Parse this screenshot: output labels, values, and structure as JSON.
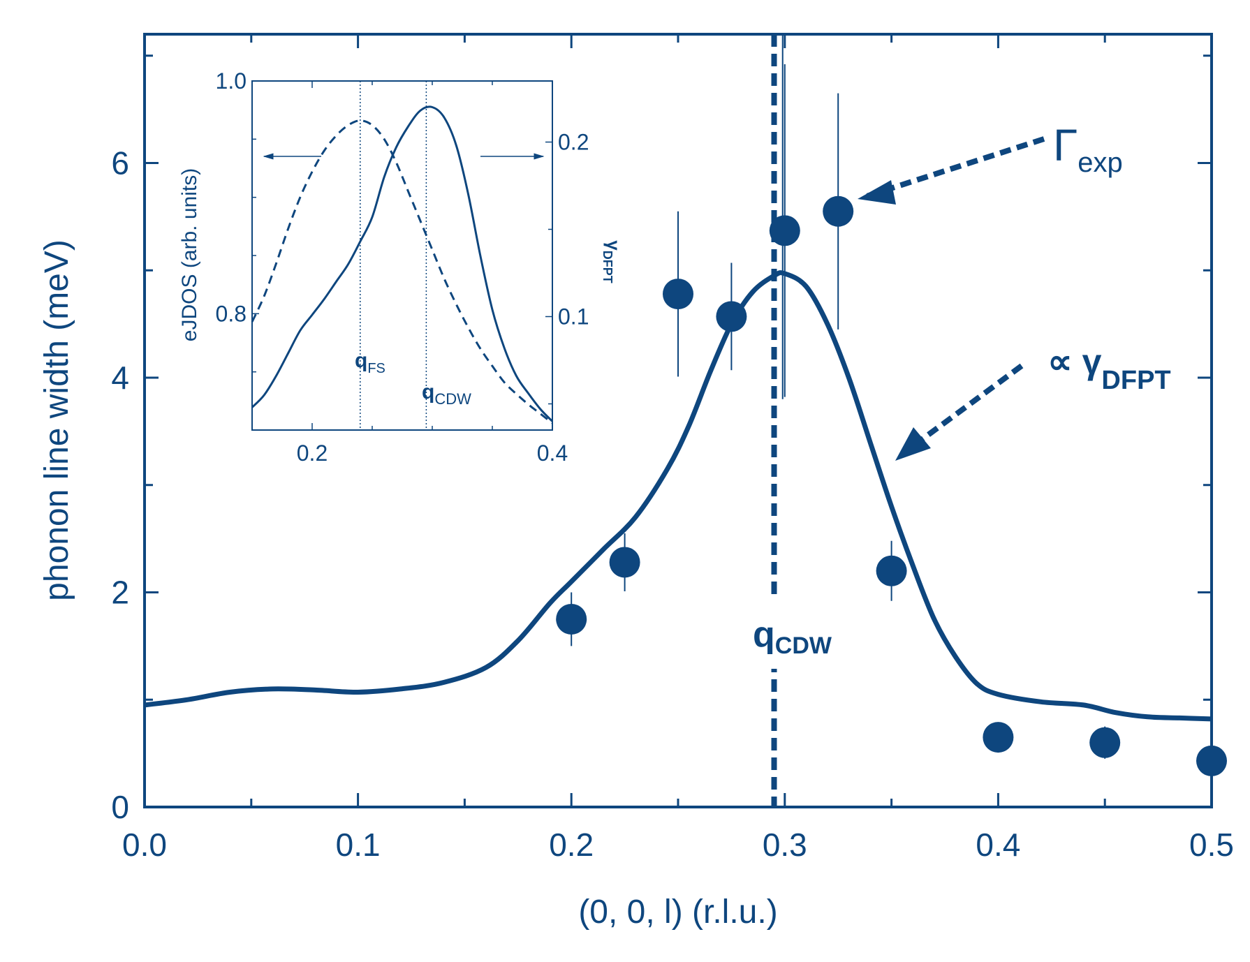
{
  "chart_data": [
    {
      "panel": "main",
      "type": "scatter",
      "xlabel": "(0, 0, l) (r.l.u.)",
      "ylabel": "phonon line width (meV)",
      "xlim": [
        0.0,
        0.5
      ],
      "ylim": [
        0,
        7.2
      ],
      "xticks": [
        "0.0",
        "0.1",
        "0.2",
        "0.3",
        "0.4",
        "0.5"
      ],
      "yticks": [
        "0",
        "2",
        "4",
        "6"
      ],
      "color": "#0e467e",
      "series": [
        {
          "name": "Γexp",
          "style": "markers-with-errorbars",
          "points": [
            {
              "x": 0.2,
              "y": 1.75,
              "err": 0.25
            },
            {
              "x": 0.225,
              "y": 2.28,
              "err": 0.27
            },
            {
              "x": 0.25,
              "y": 4.78,
              "err": 0.77
            },
            {
              "x": 0.275,
              "y": 4.57,
              "err": 0.5
            },
            {
              "x": 0.3,
              "y": 5.37,
              "err": 1.55
            },
            {
              "x": 0.325,
              "y": 5.55,
              "err": 1.1
            },
            {
              "x": 0.35,
              "y": 2.2,
              "err": 0.28
            },
            {
              "x": 0.4,
              "y": 0.65,
              "err": 0.12
            },
            {
              "x": 0.45,
              "y": 0.6,
              "err": 0.15
            },
            {
              "x": 0.5,
              "y": 0.43,
              "err": 0.08
            }
          ]
        },
        {
          "name": "∝ γDFPT",
          "style": "solid-line",
          "points": [
            [
              0.0,
              0.95
            ],
            [
              0.02,
              1.0
            ],
            [
              0.04,
              1.07
            ],
            [
              0.06,
              1.1
            ],
            [
              0.08,
              1.09
            ],
            [
              0.1,
              1.07
            ],
            [
              0.12,
              1.1
            ],
            [
              0.14,
              1.16
            ],
            [
              0.16,
              1.3
            ],
            [
              0.175,
              1.55
            ],
            [
              0.19,
              1.9
            ],
            [
              0.2,
              2.1
            ],
            [
              0.215,
              2.4
            ],
            [
              0.23,
              2.7
            ],
            [
              0.245,
              3.15
            ],
            [
              0.255,
              3.55
            ],
            [
              0.265,
              4.05
            ],
            [
              0.275,
              4.5
            ],
            [
              0.285,
              4.8
            ],
            [
              0.295,
              4.95
            ],
            [
              0.3,
              4.97
            ],
            [
              0.31,
              4.85
            ],
            [
              0.32,
              4.5
            ],
            [
              0.33,
              4.0
            ],
            [
              0.34,
              3.4
            ],
            [
              0.35,
              2.8
            ],
            [
              0.36,
              2.25
            ],
            [
              0.37,
              1.75
            ],
            [
              0.38,
              1.4
            ],
            [
              0.39,
              1.15
            ],
            [
              0.4,
              1.05
            ],
            [
              0.42,
              0.98
            ],
            [
              0.44,
              0.95
            ],
            [
              0.455,
              0.88
            ],
            [
              0.47,
              0.84
            ],
            [
              0.485,
              0.83
            ],
            [
              0.5,
              0.82
            ]
          ]
        }
      ],
      "annotations": {
        "vline": {
          "x": 0.295,
          "style": "dashed",
          "label": "q",
          "label_sub": "CDW"
        },
        "vline_thin": {
          "x": 0.299
        },
        "gamma_exp": {
          "main": "Γ",
          "sub": "exp"
        },
        "prop_gamma": {
          "main": "∝ γ",
          "sub": "DFPT"
        }
      }
    },
    {
      "panel": "inset",
      "type": "line",
      "ylabel_left": "eJDOS (arb. units)",
      "ylabel_right_main": "γ",
      "ylabel_right_sub": "DFPT",
      "xlim": [
        0.15,
        0.4
      ],
      "ylim_left": [
        0.7,
        1.0
      ],
      "ylim_right": [
        0.035,
        0.235
      ],
      "xticks": [
        "0.2",
        "0.4"
      ],
      "yticks_left": [
        "0.8",
        "1.0"
      ],
      "yticks_right": [
        "0.1",
        "0.2"
      ],
      "series": [
        {
          "name": "eJDOS",
          "style": "dashed",
          "axis": "left",
          "points": [
            [
              0.15,
              0.793
            ],
            [
              0.16,
              0.815
            ],
            [
              0.17,
              0.843
            ],
            [
              0.18,
              0.873
            ],
            [
              0.19,
              0.9
            ],
            [
              0.2,
              0.922
            ],
            [
              0.21,
              0.94
            ],
            [
              0.22,
              0.953
            ],
            [
              0.23,
              0.962
            ],
            [
              0.24,
              0.966
            ],
            [
              0.25,
              0.962
            ],
            [
              0.26,
              0.95
            ],
            [
              0.27,
              0.93
            ],
            [
              0.28,
              0.905
            ],
            [
              0.29,
              0.88
            ],
            [
              0.3,
              0.855
            ],
            [
              0.31,
              0.83
            ],
            [
              0.32,
              0.808
            ],
            [
              0.33,
              0.788
            ],
            [
              0.34,
              0.77
            ],
            [
              0.35,
              0.755
            ],
            [
              0.36,
              0.741
            ],
            [
              0.37,
              0.731
            ],
            [
              0.38,
              0.722
            ],
            [
              0.39,
              0.714
            ],
            [
              0.4,
              0.706
            ]
          ]
        },
        {
          "name": "γDFPT",
          "style": "solid",
          "axis": "right",
          "points": [
            [
              0.15,
              0.048
            ],
            [
              0.16,
              0.055
            ],
            [
              0.17,
              0.066
            ],
            [
              0.18,
              0.079
            ],
            [
              0.19,
              0.092
            ],
            [
              0.2,
              0.101
            ],
            [
              0.21,
              0.11
            ],
            [
              0.22,
              0.12
            ],
            [
              0.23,
              0.13
            ],
            [
              0.24,
              0.143
            ],
            [
              0.25,
              0.157
            ],
            [
              0.26,
              0.18
            ],
            [
              0.27,
              0.197
            ],
            [
              0.28,
              0.209
            ],
            [
              0.29,
              0.218
            ],
            [
              0.3,
              0.22
            ],
            [
              0.31,
              0.214
            ],
            [
              0.32,
              0.198
            ],
            [
              0.33,
              0.17
            ],
            [
              0.34,
              0.135
            ],
            [
              0.35,
              0.104
            ],
            [
              0.36,
              0.082
            ],
            [
              0.37,
              0.066
            ],
            [
              0.38,
              0.056
            ],
            [
              0.39,
              0.047
            ],
            [
              0.4,
              0.04
            ]
          ]
        }
      ],
      "annotations": {
        "q_fs": {
          "x": 0.24,
          "label": "q",
          "label_sub": "FS"
        },
        "q_cdw": {
          "x": 0.295,
          "label": "q",
          "label_sub": "CDW"
        }
      }
    }
  ]
}
